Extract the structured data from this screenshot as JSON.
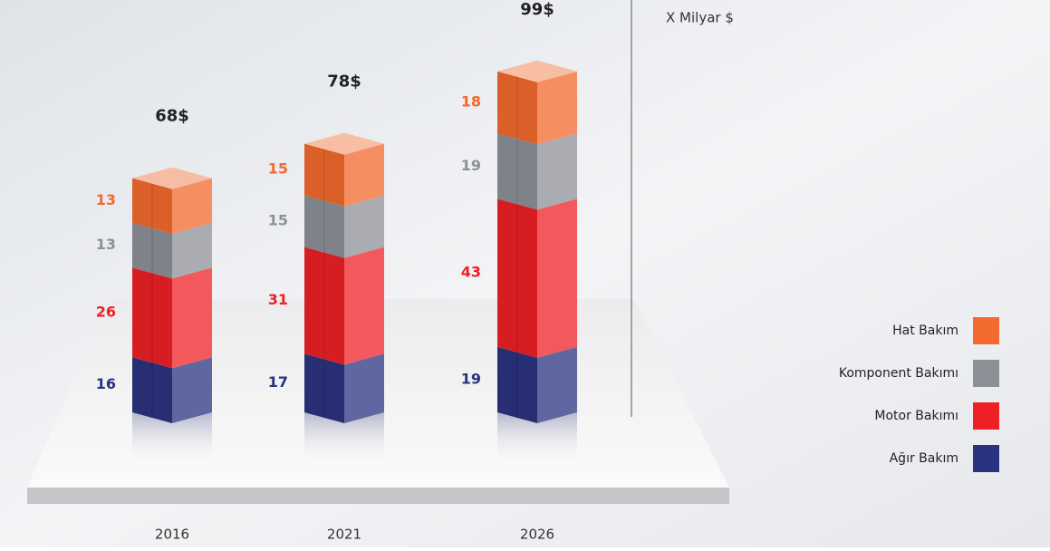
{
  "chart_data": {
    "type": "stacked-bar-3d",
    "unit_label": "X Milyar $",
    "categories": [
      "2016",
      "2021",
      "2026"
    ],
    "series": [
      {
        "name": "Ağır Bakım",
        "color": "#2b3380",
        "values": [
          16,
          17,
          19
        ]
      },
      {
        "name": "Motor Bakımı",
        "color": "#ee2026",
        "values": [
          26,
          31,
          43
        ]
      },
      {
        "name": "Komponent Bakımı",
        "color": "#8e9098",
        "values": [
          13,
          15,
          19
        ]
      },
      {
        "name": "Hat Bakım",
        "color": "#f26a2e",
        "values": [
          13,
          15,
          18
        ]
      }
    ],
    "totals": [
      68,
      78,
      99
    ],
    "total_labels": [
      "68$",
      "78$",
      "99$"
    ]
  }
}
